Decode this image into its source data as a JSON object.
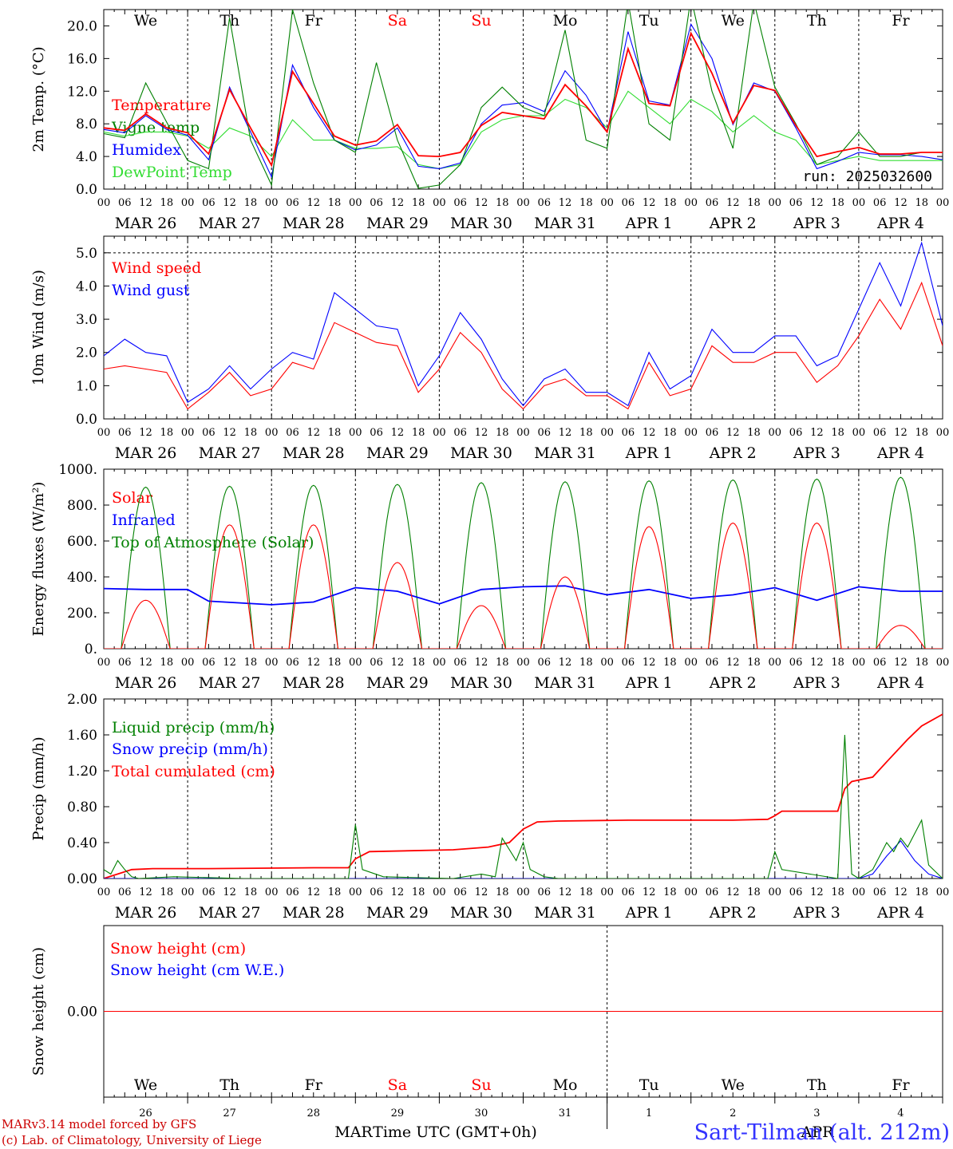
{
  "footer": {
    "model_line": "MARv3.14 model forced by GFS",
    "lab_line": "(c) Lab. of Climatology, University of Liege",
    "xlabel": "Time UTC (GMT+0h)",
    "station": "Sart-Tilman (alt. 212m)",
    "bottom_month_left": "MAR",
    "bottom_month_right": "APR"
  },
  "run_label": "run: 2025032600",
  "days": {
    "weekday": [
      "We",
      "Th",
      "Fr",
      "Sa",
      "Su",
      "Mo",
      "Tu",
      "We",
      "Th",
      "Fr"
    ],
    "weekend": [
      false,
      false,
      false,
      true,
      true,
      false,
      false,
      false,
      false,
      false
    ],
    "date_labels": [
      "MAR 26",
      "MAR 27",
      "MAR 28",
      "MAR 29",
      "MAR 30",
      "MAR 31",
      "APR 1",
      "APR 2",
      "APR 3",
      "APR 4"
    ],
    "day_numbers": [
      "26",
      "27",
      "28",
      "29",
      "30",
      "31",
      "1",
      "2",
      "3",
      "4"
    ],
    "hour_ticks": [
      "00",
      "06",
      "12",
      "18"
    ],
    "final_tick": "00"
  },
  "colors": {
    "red": "#ff0000",
    "green": "#008000",
    "blue": "#0000ff",
    "lightgreen": "#33dd33",
    "weekend": "#ff0000"
  },
  "chart_data": [
    {
      "id": "temp",
      "type": "line",
      "ylabel": "2m Temp. (°C)",
      "ylim": [
        0,
        22
      ],
      "yticks": [
        0,
        4,
        8,
        12,
        16,
        20
      ],
      "ytick_labels": [
        "0.0",
        "4.0",
        "8.0",
        "12.0",
        "16.0",
        "20.0"
      ],
      "x_unit": "hours since MAR 26 00 UTC",
      "legend": [
        "Temperature",
        "Vigne temp",
        "Humidex",
        "DewPoint Temp"
      ],
      "series": [
        {
          "name": "Temperature",
          "color": "red",
          "x": [
            0,
            6,
            12,
            18,
            24,
            30,
            36,
            42,
            48,
            54,
            60,
            66,
            72,
            78,
            84,
            90,
            96,
            102,
            108,
            114,
            120,
            126,
            132,
            138,
            144,
            150,
            156,
            162,
            168,
            174,
            180,
            186,
            192,
            198,
            204,
            210,
            216,
            222,
            228,
            234,
            240
          ],
          "y": [
            7.5,
            7.2,
            9.2,
            7.5,
            6.9,
            4.3,
            12.2,
            7.5,
            2.9,
            14.4,
            10.5,
            6.5,
            5.4,
            5.9,
            7.9,
            4.1,
            4.0,
            4.5,
            7.8,
            9.4,
            9.0,
            8.6,
            12.8,
            10.2,
            7.0,
            17.2,
            10.5,
            10.2,
            19.1,
            14.2,
            8.1,
            12.7,
            12.1,
            7.8,
            4.0,
            4.6,
            5.1,
            4.3,
            4.3,
            4.5,
            4.5
          ]
        },
        {
          "name": "Vigne temp",
          "color": "green",
          "x": [
            0,
            6,
            12,
            18,
            24,
            30,
            36,
            42,
            48,
            54,
            60,
            66,
            72,
            78,
            84,
            90,
            96,
            102,
            108,
            114,
            120,
            126,
            132,
            138,
            144,
            150,
            156,
            162,
            168,
            174,
            180,
            186,
            192,
            198,
            204,
            210,
            216,
            222,
            228,
            234,
            240
          ],
          "y": [
            6.8,
            6.3,
            13.0,
            8.2,
            3.5,
            2.5,
            21.0,
            6.0,
            0.5,
            22.0,
            13.0,
            6.0,
            4.5,
            15.5,
            6.0,
            0.1,
            0.5,
            3.0,
            10.0,
            12.5,
            10.0,
            9.0,
            19.5,
            6.0,
            5.0,
            23.0,
            8.0,
            6.0,
            23.5,
            12.0,
            5.0,
            23.0,
            12.5,
            8.0,
            3.0,
            4.0,
            7.0,
            4.0,
            4.0,
            4.5,
            4.5
          ]
        },
        {
          "name": "Humidex",
          "color": "blue",
          "x": [
            0,
            6,
            12,
            18,
            24,
            30,
            36,
            42,
            48,
            54,
            60,
            66,
            72,
            78,
            84,
            90,
            96,
            102,
            108,
            114,
            120,
            126,
            132,
            138,
            144,
            150,
            156,
            162,
            168,
            174,
            180,
            186,
            192,
            198,
            204,
            210,
            216,
            222,
            228,
            234,
            240
          ],
          "y": [
            7.3,
            6.9,
            9.0,
            7.3,
            6.6,
            3.6,
            12.5,
            7.0,
            1.5,
            15.2,
            10.0,
            6.0,
            4.8,
            5.4,
            7.5,
            2.8,
            2.5,
            3.2,
            8.0,
            10.3,
            10.6,
            9.5,
            14.5,
            11.5,
            7.0,
            19.3,
            10.8,
            10.3,
            20.2,
            16.0,
            7.9,
            13.0,
            12.0,
            7.5,
            2.5,
            3.4,
            4.5,
            4.2,
            4.2,
            4.0,
            3.6
          ]
        },
        {
          "name": "DewPoint Temp",
          "color": "lightgreen",
          "x": [
            0,
            6,
            12,
            18,
            24,
            30,
            36,
            42,
            48,
            54,
            60,
            66,
            72,
            78,
            84,
            90,
            96,
            102,
            108,
            114,
            120,
            126,
            132,
            138,
            144,
            150,
            156,
            162,
            168,
            174,
            180,
            186,
            192,
            198,
            204,
            210,
            216,
            222,
            228,
            234,
            240
          ],
          "y": [
            7.0,
            6.5,
            7.0,
            7.0,
            6.5,
            5.0,
            7.5,
            6.5,
            4.0,
            8.5,
            6.0,
            6.0,
            5.0,
            5.0,
            5.2,
            3.0,
            2.5,
            3.0,
            7.0,
            8.5,
            9.0,
            9.0,
            11.0,
            10.0,
            7.5,
            12.0,
            10.0,
            8.0,
            11.0,
            9.5,
            7.0,
            9.0,
            7.0,
            6.0,
            3.0,
            3.5,
            4.0,
            3.5,
            3.5,
            3.5,
            3.5
          ]
        }
      ]
    },
    {
      "id": "wind",
      "type": "line",
      "ylabel": "10m Wind (m/s)",
      "ylim": [
        0,
        5.5
      ],
      "yticks": [
        0,
        1,
        2,
        3,
        4,
        5
      ],
      "ytick_labels": [
        "0.0",
        "1.0",
        "2.0",
        "3.0",
        "4.0",
        "5.0"
      ],
      "x_unit": "hours since MAR 26 00 UTC",
      "legend": [
        "Wind speed",
        "Wind gust"
      ],
      "series": [
        {
          "name": "Wind speed",
          "color": "red",
          "x": [
            0,
            6,
            12,
            18,
            24,
            30,
            36,
            42,
            48,
            54,
            60,
            66,
            72,
            78,
            84,
            90,
            96,
            102,
            108,
            114,
            120,
            126,
            132,
            138,
            144,
            150,
            156,
            162,
            168,
            174,
            180,
            186,
            192,
            198,
            204,
            210,
            216,
            222,
            228,
            234,
            240
          ],
          "y": [
            1.5,
            1.6,
            1.5,
            1.4,
            0.3,
            0.8,
            1.4,
            0.7,
            0.9,
            1.7,
            1.5,
            2.9,
            2.6,
            2.3,
            2.2,
            0.8,
            1.5,
            2.6,
            2.0,
            0.9,
            0.3,
            1.0,
            1.2,
            0.7,
            0.7,
            0.3,
            1.7,
            0.7,
            0.9,
            2.2,
            1.7,
            1.7,
            2.0,
            2.0,
            1.1,
            1.6,
            2.5,
            3.6,
            2.7,
            4.1,
            2.2
          ]
        },
        {
          "name": "Wind gust",
          "color": "blue",
          "x": [
            0,
            6,
            12,
            18,
            24,
            30,
            36,
            42,
            48,
            54,
            60,
            66,
            72,
            78,
            84,
            90,
            96,
            102,
            108,
            114,
            120,
            126,
            132,
            138,
            144,
            150,
            156,
            162,
            168,
            174,
            180,
            186,
            192,
            198,
            204,
            210,
            216,
            222,
            228,
            234,
            240
          ],
          "y": [
            1.9,
            2.4,
            2.0,
            1.9,
            0.5,
            0.9,
            1.6,
            0.9,
            1.5,
            2.0,
            1.8,
            3.8,
            3.3,
            2.8,
            2.7,
            1.0,
            1.9,
            3.2,
            2.4,
            1.2,
            0.4,
            1.2,
            1.5,
            0.8,
            0.8,
            0.4,
            2.0,
            0.9,
            1.3,
            2.7,
            2.0,
            2.0,
            2.5,
            2.5,
            1.6,
            1.9,
            3.3,
            4.7,
            3.4,
            5.3,
            2.8
          ]
        }
      ]
    },
    {
      "id": "energy",
      "type": "line",
      "ylabel": "Energy fluxes (W/m²)",
      "ylim": [
        0,
        1000
      ],
      "yticks": [
        0,
        200,
        400,
        600,
        800,
        1000
      ],
      "ytick_labels": [
        "0.",
        "200.",
        "400.",
        "600.",
        "800.",
        "1000."
      ],
      "x_unit": "hours since MAR 26 00 UTC",
      "legend": [
        "Solar",
        "Infrared",
        "Top of Atmosphere (Solar)"
      ],
      "series": [
        {
          "name": "Solar",
          "color": "red",
          "peak_hours": [
            12,
            36,
            60,
            84,
            108,
            132,
            156,
            180,
            204,
            228
          ],
          "peak_values": [
            270,
            690,
            690,
            480,
            240,
            400,
            680,
            700,
            700,
            130
          ]
        },
        {
          "name": "Infrared",
          "color": "blue",
          "x": [
            0,
            12,
            24,
            30,
            48,
            60,
            72,
            84,
            96,
            108,
            120,
            132,
            144,
            156,
            168,
            180,
            192,
            204,
            216,
            228,
            240
          ],
          "y": [
            335,
            330,
            330,
            265,
            245,
            260,
            340,
            320,
            250,
            330,
            345,
            350,
            300,
            330,
            280,
            300,
            340,
            270,
            345,
            320,
            320
          ]
        },
        {
          "name": "Top of Atmosphere (Solar)",
          "color": "green",
          "peak_hours": [
            12,
            36,
            60,
            84,
            108,
            132,
            156,
            180,
            204,
            228
          ],
          "peak_values": [
            900,
            905,
            910,
            915,
            925,
            930,
            935,
            940,
            945,
            955
          ]
        }
      ]
    },
    {
      "id": "precip",
      "type": "line",
      "ylabel": "Precip (mm/h)",
      "ylim": [
        0,
        2
      ],
      "yticks": [
        0,
        0.4,
        0.8,
        1.2,
        1.6,
        2.0
      ],
      "ytick_labels": [
        "0.00",
        "0.40",
        "0.80",
        "1.20",
        "1.60",
        "2.00"
      ],
      "x_unit": "hours since MAR 26 00 UTC",
      "legend": [
        "Liquid precip (mm/h)",
        "Snow precip (mm/h)",
        "Total cumulated (cm)"
      ],
      "series": [
        {
          "name": "Liquid precip (mm/h)",
          "color": "green",
          "x": [
            0,
            2,
            4,
            6,
            8,
            10,
            20,
            40,
            70,
            72,
            74,
            80,
            100,
            108,
            112,
            114,
            118,
            120,
            122,
            126,
            130,
            190,
            192,
            194,
            210,
            212,
            214,
            216,
            220,
            224,
            226,
            228,
            230,
            234,
            236,
            240
          ],
          "y": [
            0.1,
            0.05,
            0.2,
            0.1,
            0.02,
            0,
            0.02,
            0,
            0,
            0.6,
            0.1,
            0.02,
            0,
            0.05,
            0.02,
            0.45,
            0.2,
            0.4,
            0.1,
            0.02,
            0,
            0,
            0.3,
            0.1,
            0,
            1.6,
            0.05,
            0,
            0.1,
            0.4,
            0.3,
            0.45,
            0.35,
            0.65,
            0.15,
            0.0
          ]
        },
        {
          "name": "Snow precip (mm/h)",
          "color": "blue",
          "x": [
            0,
            216,
            220,
            224,
            228,
            232,
            236,
            240
          ],
          "y": [
            0,
            0,
            0.05,
            0.25,
            0.42,
            0.2,
            0.05,
            0
          ]
        },
        {
          "name": "Total cumulated (cm)",
          "color": "red",
          "x": [
            0,
            4,
            8,
            14,
            30,
            60,
            70,
            72,
            76,
            100,
            110,
            116,
            120,
            124,
            130,
            150,
            180,
            190,
            192,
            194,
            210,
            212,
            214,
            220,
            224,
            230,
            234,
            240
          ],
          "y": [
            0.0,
            0.05,
            0.1,
            0.11,
            0.11,
            0.12,
            0.12,
            0.22,
            0.3,
            0.32,
            0.35,
            0.4,
            0.55,
            0.63,
            0.64,
            0.65,
            0.65,
            0.66,
            0.7,
            0.75,
            0.75,
            1.0,
            1.08,
            1.13,
            1.3,
            1.55,
            1.7,
            1.83
          ]
        }
      ]
    },
    {
      "id": "snow",
      "type": "line",
      "ylabel": "Snow height (cm)",
      "ylim": [
        -1,
        1
      ],
      "yticks": [
        0
      ],
      "ytick_labels": [
        "0.00"
      ],
      "x_unit": "hours since MAR 26 00 UTC",
      "legend": [
        "Snow height (cm)",
        "Snow height (cm W.E.)"
      ],
      "series": [
        {
          "name": "Snow height (cm)",
          "color": "red",
          "x": [
            0,
            240
          ],
          "y": [
            0,
            0
          ]
        },
        {
          "name": "Snow height (cm W.E.)",
          "color": "blue",
          "x": [
            0,
            240
          ],
          "y": [
            0,
            0
          ]
        }
      ]
    }
  ]
}
